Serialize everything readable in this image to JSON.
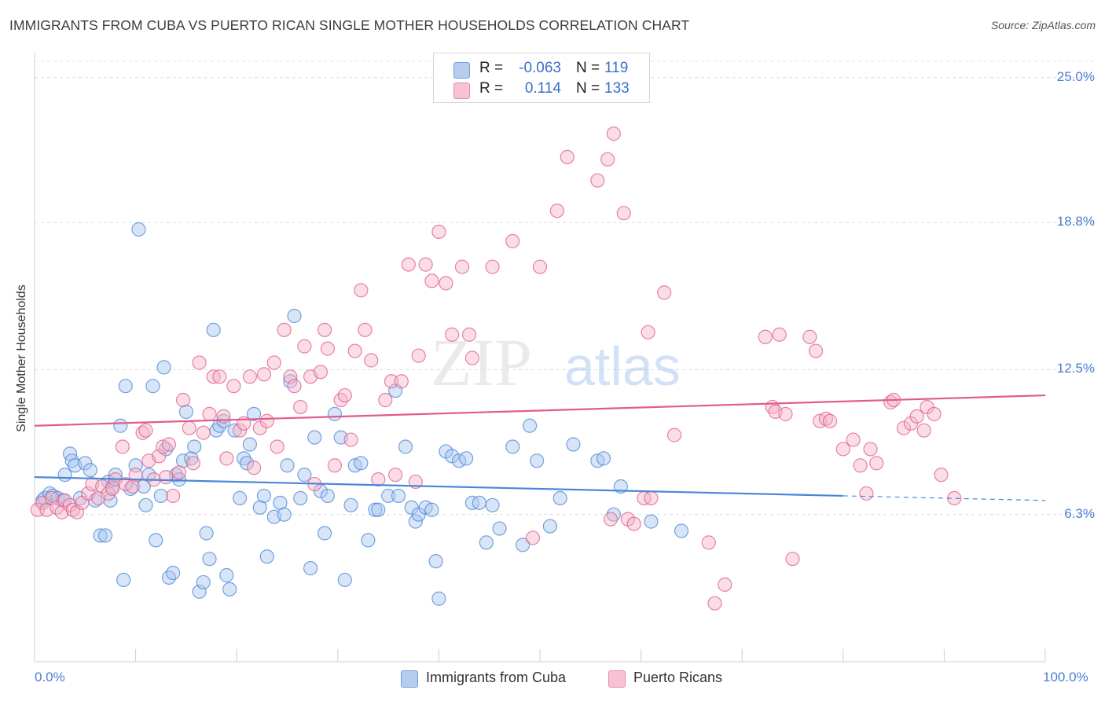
{
  "title": "IMMIGRANTS FROM CUBA VS PUERTO RICAN SINGLE MOTHER HOUSEHOLDS CORRELATION CHART",
  "source": "Source: ZipAtlas.com",
  "watermark": {
    "zip": "ZIP",
    "atlas": "atlas"
  },
  "stats": [
    {
      "r_label": "R =",
      "r_value": "-0.063",
      "n_label": "N =",
      "n_value": "119",
      "color": "#6f9ede",
      "fill": "#b7cdf0"
    },
    {
      "r_label": "R =",
      "r_value": "0.114",
      "n_label": "N =",
      "n_value": "133",
      "color": "#e88aaa",
      "fill": "#f7c3d4"
    }
  ],
  "legend": [
    {
      "label": "Immigrants from Cuba",
      "color": "#6f9ede",
      "fill": "#b7cdf0"
    },
    {
      "label": "Puerto Ricans",
      "color": "#e88aaa",
      "fill": "#f7c3d4"
    }
  ],
  "chart_data": {
    "type": "scatter",
    "title": "IMMIGRANTS FROM CUBA VS PUERTO RICAN SINGLE MOTHER HOUSEHOLDS CORRELATION CHART",
    "xlabel": "",
    "ylabel": "Single Mother Households",
    "xlim": [
      0,
      100
    ],
    "ylim": [
      0,
      25.9
    ],
    "x_tick_labels": [
      "0.0%",
      "100.0%"
    ],
    "y_ticks": [
      6.3,
      12.5,
      18.8,
      25.0
    ],
    "y_tick_labels": [
      "6.3%",
      "12.5%",
      "18.8%",
      "25.0%"
    ],
    "grid": "horizontal dashed",
    "legend_position": "bottom-center",
    "series": [
      {
        "name": "Immigrants from Cuba",
        "color": "#4a86d8",
        "fill": "#a9c5ee",
        "trend": {
          "x0": 0,
          "y0": 7.9,
          "x1": 80,
          "y1": 7.1,
          "dashed_to": 100,
          "dashed_y": 6.9
        },
        "points": [
          [
            0.8,
            6.9
          ],
          [
            1.0,
            7.0
          ],
          [
            1.5,
            7.2
          ],
          [
            1.8,
            7.1
          ],
          [
            2.3,
            7.0
          ],
          [
            2.8,
            6.9
          ],
          [
            3.0,
            8.0
          ],
          [
            3.5,
            8.9
          ],
          [
            3.7,
            8.6
          ],
          [
            4.0,
            8.4
          ],
          [
            4.5,
            7.0
          ],
          [
            5.0,
            8.5
          ],
          [
            5.5,
            8.2
          ],
          [
            6.0,
            6.9
          ],
          [
            6.5,
            5.4
          ],
          [
            7.0,
            5.4
          ],
          [
            7.3,
            7.7
          ],
          [
            7.5,
            6.9
          ],
          [
            7.7,
            7.5
          ],
          [
            8.0,
            8.0
          ],
          [
            8.5,
            10.1
          ],
          [
            8.8,
            3.5
          ],
          [
            9.0,
            11.8
          ],
          [
            9.5,
            7.4
          ],
          [
            10.0,
            8.4
          ],
          [
            10.3,
            18.5
          ],
          [
            10.8,
            7.5
          ],
          [
            11.0,
            6.7
          ],
          [
            11.3,
            8.0
          ],
          [
            11.7,
            11.8
          ],
          [
            12.0,
            5.2
          ],
          [
            12.5,
            7.1
          ],
          [
            12.8,
            12.6
          ],
          [
            13.0,
            9.1
          ],
          [
            13.3,
            3.6
          ],
          [
            13.7,
            3.8
          ],
          [
            14.0,
            8.0
          ],
          [
            14.3,
            7.8
          ],
          [
            14.7,
            8.6
          ],
          [
            15.0,
            10.7
          ],
          [
            15.5,
            8.7
          ],
          [
            15.8,
            9.2
          ],
          [
            16.3,
            3.0
          ],
          [
            16.7,
            3.4
          ],
          [
            17.0,
            5.5
          ],
          [
            17.3,
            4.4
          ],
          [
            17.7,
            14.2
          ],
          [
            18.0,
            9.9
          ],
          [
            18.3,
            10.1
          ],
          [
            18.7,
            10.3
          ],
          [
            19.0,
            3.7
          ],
          [
            19.3,
            3.1
          ],
          [
            19.8,
            9.9
          ],
          [
            20.3,
            7.0
          ],
          [
            20.7,
            8.7
          ],
          [
            21.0,
            8.5
          ],
          [
            21.3,
            9.3
          ],
          [
            21.7,
            10.6
          ],
          [
            22.3,
            6.6
          ],
          [
            22.7,
            7.1
          ],
          [
            23.0,
            4.5
          ],
          [
            23.7,
            6.2
          ],
          [
            24.3,
            6.8
          ],
          [
            24.7,
            6.3
          ],
          [
            25.0,
            8.4
          ],
          [
            25.3,
            12.0
          ],
          [
            25.7,
            14.8
          ],
          [
            26.3,
            7.0
          ],
          [
            26.7,
            8.0
          ],
          [
            27.3,
            4.0
          ],
          [
            27.7,
            9.6
          ],
          [
            28.3,
            7.3
          ],
          [
            28.7,
            5.5
          ],
          [
            29.0,
            7.1
          ],
          [
            29.7,
            10.6
          ],
          [
            30.3,
            9.6
          ],
          [
            30.7,
            3.5
          ],
          [
            31.3,
            6.7
          ],
          [
            31.7,
            8.4
          ],
          [
            32.3,
            8.5
          ],
          [
            33.0,
            5.2
          ],
          [
            33.7,
            6.5
          ],
          [
            34.0,
            6.5
          ],
          [
            35.0,
            7.1
          ],
          [
            35.7,
            11.6
          ],
          [
            36.0,
            7.1
          ],
          [
            36.7,
            9.2
          ],
          [
            37.3,
            6.6
          ],
          [
            37.7,
            6.0
          ],
          [
            38.0,
            6.3
          ],
          [
            38.7,
            6.6
          ],
          [
            39.3,
            6.5
          ],
          [
            39.7,
            4.3
          ],
          [
            40.0,
            2.7
          ],
          [
            40.7,
            9.0
          ],
          [
            41.3,
            8.8
          ],
          [
            42.0,
            8.6
          ],
          [
            42.7,
            8.7
          ],
          [
            43.3,
            6.8
          ],
          [
            44.0,
            6.8
          ],
          [
            44.7,
            5.1
          ],
          [
            45.3,
            6.7
          ],
          [
            46.0,
            5.7
          ],
          [
            47.3,
            9.2
          ],
          [
            48.3,
            5.0
          ],
          [
            49.0,
            10.1
          ],
          [
            49.7,
            8.6
          ],
          [
            51.0,
            5.8
          ],
          [
            52.0,
            7.0
          ],
          [
            53.3,
            9.3
          ],
          [
            55.7,
            8.6
          ],
          [
            56.3,
            8.7
          ],
          [
            57.3,
            6.3
          ],
          [
            58.0,
            7.5
          ],
          [
            61.0,
            6.0
          ],
          [
            64.0,
            5.6
          ]
        ]
      },
      {
        "name": "Puerto Ricans",
        "color": "#e05c8a",
        "fill": "#f4b3c8",
        "trend": {
          "x0": 0,
          "y0": 10.1,
          "x1": 100,
          "y1": 11.4
        },
        "points": [
          [
            0.3,
            6.5
          ],
          [
            0.8,
            6.8
          ],
          [
            1.2,
            6.5
          ],
          [
            1.7,
            7.0
          ],
          [
            2.2,
            6.6
          ],
          [
            2.7,
            6.4
          ],
          [
            3.0,
            6.9
          ],
          [
            3.5,
            6.7
          ],
          [
            3.8,
            6.5
          ],
          [
            4.2,
            6.4
          ],
          [
            4.7,
            6.8
          ],
          [
            5.3,
            7.2
          ],
          [
            5.7,
            7.6
          ],
          [
            6.3,
            7.0
          ],
          [
            6.7,
            7.5
          ],
          [
            7.3,
            7.2
          ],
          [
            7.7,
            7.4
          ],
          [
            8.0,
            7.8
          ],
          [
            8.7,
            9.2
          ],
          [
            9.0,
            7.6
          ],
          [
            9.7,
            7.5
          ],
          [
            10.0,
            8.0
          ],
          [
            10.7,
            9.8
          ],
          [
            11.0,
            9.9
          ],
          [
            11.3,
            8.6
          ],
          [
            11.8,
            7.8
          ],
          [
            12.3,
            8.8
          ],
          [
            12.7,
            9.2
          ],
          [
            13.0,
            7.9
          ],
          [
            13.3,
            9.3
          ],
          [
            13.7,
            7.1
          ],
          [
            14.3,
            8.1
          ],
          [
            14.7,
            11.2
          ],
          [
            15.3,
            10.0
          ],
          [
            15.7,
            8.5
          ],
          [
            16.3,
            12.8
          ],
          [
            16.7,
            9.8
          ],
          [
            17.3,
            10.6
          ],
          [
            17.7,
            12.2
          ],
          [
            18.3,
            12.2
          ],
          [
            18.7,
            10.5
          ],
          [
            19.0,
            8.7
          ],
          [
            19.7,
            11.8
          ],
          [
            20.3,
            9.9
          ],
          [
            20.7,
            10.2
          ],
          [
            21.3,
            12.2
          ],
          [
            21.7,
            8.3
          ],
          [
            22.3,
            10.0
          ],
          [
            22.7,
            12.3
          ],
          [
            23.0,
            10.3
          ],
          [
            23.7,
            12.8
          ],
          [
            24.0,
            9.2
          ],
          [
            24.7,
            14.2
          ],
          [
            25.3,
            12.2
          ],
          [
            25.7,
            11.8
          ],
          [
            26.3,
            10.9
          ],
          [
            26.7,
            13.5
          ],
          [
            27.3,
            12.2
          ],
          [
            27.7,
            7.6
          ],
          [
            28.3,
            12.4
          ],
          [
            28.7,
            14.2
          ],
          [
            29.0,
            13.4
          ],
          [
            29.7,
            8.4
          ],
          [
            30.3,
            11.2
          ],
          [
            30.7,
            11.4
          ],
          [
            31.3,
            9.5
          ],
          [
            31.7,
            13.3
          ],
          [
            32.3,
            15.9
          ],
          [
            32.7,
            14.2
          ],
          [
            33.3,
            12.9
          ],
          [
            34.0,
            7.8
          ],
          [
            34.7,
            11.2
          ],
          [
            35.3,
            12.0
          ],
          [
            35.7,
            8.0
          ],
          [
            36.3,
            12.0
          ],
          [
            37.0,
            17.0
          ],
          [
            37.7,
            7.7
          ],
          [
            38.0,
            13.1
          ],
          [
            38.7,
            17.0
          ],
          [
            39.3,
            16.3
          ],
          [
            40.0,
            18.4
          ],
          [
            40.7,
            16.2
          ],
          [
            41.3,
            14.0
          ],
          [
            42.3,
            16.9
          ],
          [
            43.0,
            14.0
          ],
          [
            43.3,
            13.0
          ],
          [
            45.3,
            16.9
          ],
          [
            47.3,
            18.0
          ],
          [
            49.3,
            5.3
          ],
          [
            50.0,
            16.9
          ],
          [
            51.7,
            19.3
          ],
          [
            52.7,
            21.6
          ],
          [
            55.7,
            20.6
          ],
          [
            56.7,
            21.5
          ],
          [
            57.0,
            6.1
          ],
          [
            57.3,
            22.6
          ],
          [
            58.3,
            19.2
          ],
          [
            58.7,
            6.1
          ],
          [
            59.3,
            5.9
          ],
          [
            60.3,
            7.0
          ],
          [
            60.7,
            14.1
          ],
          [
            61.0,
            7.0
          ],
          [
            62.3,
            15.8
          ],
          [
            63.3,
            9.7
          ],
          [
            66.7,
            5.1
          ],
          [
            67.3,
            2.5
          ],
          [
            68.3,
            3.3
          ],
          [
            72.3,
            13.9
          ],
          [
            73.0,
            10.9
          ],
          [
            73.3,
            10.7
          ],
          [
            73.7,
            14.0
          ],
          [
            74.3,
            10.6
          ],
          [
            75.0,
            4.4
          ],
          [
            76.7,
            13.9
          ],
          [
            77.3,
            13.3
          ],
          [
            77.7,
            10.3
          ],
          [
            78.3,
            10.4
          ],
          [
            78.7,
            10.3
          ],
          [
            80.0,
            9.1
          ],
          [
            81.0,
            9.5
          ],
          [
            81.7,
            8.4
          ],
          [
            82.3,
            7.2
          ],
          [
            82.7,
            9.1
          ],
          [
            83.3,
            8.5
          ],
          [
            84.7,
            11.1
          ],
          [
            85.0,
            11.2
          ],
          [
            86.0,
            10.0
          ],
          [
            86.7,
            10.2
          ],
          [
            87.3,
            10.5
          ],
          [
            88.0,
            9.9
          ],
          [
            88.3,
            10.9
          ],
          [
            89.0,
            10.6
          ],
          [
            89.7,
            8.0
          ],
          [
            91.0,
            7.0
          ]
        ]
      }
    ]
  }
}
